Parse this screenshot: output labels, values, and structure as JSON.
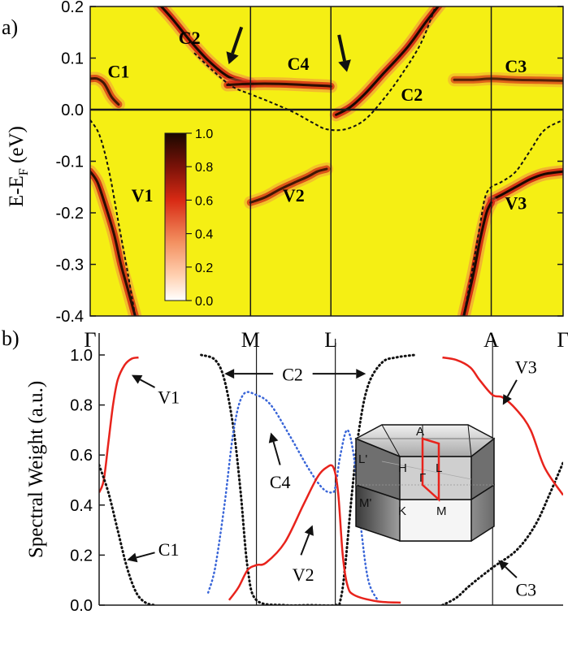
{
  "colors": {
    "panel_a_background": "#f5ef14",
    "axis": "#1a1a1a",
    "band_dark": "#1a0800",
    "band_mid": "#d02010",
    "band_light": "#f07050",
    "dashed": "#111111",
    "red_curve": "#e8231c",
    "blue_curve": "#3a66d8"
  },
  "chart_data": [
    {
      "type": "heatmap",
      "panel_label": "a)",
      "ylabel_main": "E-E",
      "ylabel_sub": "F",
      "ylabel_unit": " (eV)",
      "ylim": [
        -0.4,
        0.2
      ],
      "yticks": [
        {
          "value": 0.2,
          "label": "0.2"
        },
        {
          "value": 0.1,
          "label": "0.1"
        },
        {
          "value": 0.0,
          "label": "0.0"
        },
        {
          "value": -0.1,
          "label": "-0.1"
        },
        {
          "value": -0.2,
          "label": "-0.2"
        },
        {
          "value": -0.3,
          "label": "-0.3"
        },
        {
          "value": -0.4,
          "label": "-0.4"
        }
      ],
      "xlim": [
        0,
        1
      ],
      "kpoints": [
        {
          "label": "Γ",
          "x": 0.0
        },
        {
          "label": "M",
          "x": 0.339
        },
        {
          "label": "L",
          "x": 0.509
        },
        {
          "label": "A",
          "x": 0.848
        },
        {
          "label": "Γ",
          "x": 1.0
        }
      ],
      "colorbar": {
        "min": 0.0,
        "max": 1.0,
        "ticks": [
          {
            "value": 1.0,
            "label": "1.0"
          },
          {
            "value": 0.8,
            "label": "0.8"
          },
          {
            "value": 0.6,
            "label": "0.6"
          },
          {
            "value": 0.4,
            "label": "0.4"
          },
          {
            "value": 0.2,
            "label": "0.2"
          },
          {
            "value": 0.0,
            "label": "0.0"
          }
        ]
      },
      "band_labels": [
        {
          "text": "C1",
          "x": 0.06,
          "y": 0.075
        },
        {
          "text": "C2",
          "x": 0.21,
          "y": 0.14
        },
        {
          "text": "C4",
          "x": 0.44,
          "y": 0.09
        },
        {
          "text": "C2",
          "x": 0.68,
          "y": 0.03
        },
        {
          "text": "C3",
          "x": 0.9,
          "y": 0.085
        },
        {
          "text": "V1",
          "x": 0.11,
          "y": -0.165
        },
        {
          "text": "V2",
          "x": 0.43,
          "y": -0.165
        },
        {
          "text": "V3",
          "x": 0.9,
          "y": -0.18
        }
      ],
      "arrows": [
        {
          "x1": 0.32,
          "y1": 0.16,
          "x2": 0.293,
          "y2": 0.088
        },
        {
          "x1": 0.526,
          "y1": 0.145,
          "x2": 0.543,
          "y2": 0.073
        }
      ],
      "bands": [
        {
          "name": "C1",
          "intensity": 0.8,
          "x": [
            0.0,
            0.015,
            0.03,
            0.045,
            0.06
          ],
          "y": [
            0.06,
            0.06,
            0.05,
            0.025,
            0.01
          ]
        },
        {
          "name": "C2-left",
          "intensity": 1.0,
          "x": [
            0.13,
            0.17,
            0.21,
            0.25,
            0.29,
            0.32,
            0.339
          ],
          "y": [
            0.22,
            0.18,
            0.135,
            0.095,
            0.065,
            0.055,
            0.05
          ]
        },
        {
          "name": "C4",
          "intensity": 0.9,
          "x": [
            0.29,
            0.339,
            0.4,
            0.45,
            0.5,
            0.509
          ],
          "y": [
            0.048,
            0.05,
            0.05,
            0.048,
            0.046,
            0.045
          ]
        },
        {
          "name": "C2-right",
          "intensity": 1.0,
          "x": [
            0.52,
            0.55,
            0.58,
            0.62,
            0.67,
            0.71,
            0.74
          ],
          "y": [
            -0.01,
            0.005,
            0.03,
            0.07,
            0.12,
            0.17,
            0.205
          ]
        },
        {
          "name": "C3",
          "intensity": 0.7,
          "x": [
            0.77,
            0.81,
            0.848,
            0.9,
            0.95,
            1.0
          ],
          "y": [
            0.058,
            0.058,
            0.06,
            0.058,
            0.057,
            0.056
          ]
        },
        {
          "name": "V1",
          "intensity": 0.9,
          "x": [
            0.0,
            0.015,
            0.03,
            0.05,
            0.065,
            0.08,
            0.095
          ],
          "y": [
            -0.12,
            -0.14,
            -0.18,
            -0.24,
            -0.3,
            -0.35,
            -0.4
          ]
        },
        {
          "name": "V2",
          "intensity": 0.8,
          "x": [
            0.339,
            0.37,
            0.4,
            0.43,
            0.46,
            0.48,
            0.5
          ],
          "y": [
            -0.18,
            -0.17,
            -0.155,
            -0.142,
            -0.13,
            -0.12,
            -0.115
          ]
        },
        {
          "name": "V3-upper",
          "intensity": 1.0,
          "x": [
            0.848,
            0.87,
            0.9,
            0.93,
            0.96,
            1.0
          ],
          "y": [
            -0.175,
            -0.165,
            -0.15,
            -0.135,
            -0.125,
            -0.12
          ]
        },
        {
          "name": "V3-lower",
          "intensity": 1.0,
          "x": [
            0.79,
            0.81,
            0.825,
            0.838,
            0.848
          ],
          "y": [
            -0.4,
            -0.32,
            -0.25,
            -0.2,
            -0.18
          ]
        }
      ],
      "dashed_curves": [
        {
          "name": "left",
          "x": [
            0.0,
            0.02,
            0.04,
            0.06,
            0.08,
            0.095
          ],
          "y": [
            -0.02,
            -0.05,
            -0.12,
            -0.22,
            -0.32,
            -0.4
          ]
        },
        {
          "name": "middle",
          "x": [
            0.22,
            0.26,
            0.3,
            0.339,
            0.38,
            0.43,
            0.47,
            0.5,
            0.54,
            0.58,
            0.62,
            0.66,
            0.7,
            0.73
          ],
          "y": [
            0.11,
            0.075,
            0.045,
            0.03,
            0.015,
            -0.005,
            -0.025,
            -0.038,
            -0.038,
            -0.02,
            0.02,
            0.07,
            0.13,
            0.2
          ]
        },
        {
          "name": "right",
          "x": [
            0.79,
            0.81,
            0.825,
            0.835,
            0.848,
            0.87,
            0.9,
            0.93,
            0.96,
            1.0
          ],
          "y": [
            -0.4,
            -0.3,
            -0.22,
            -0.17,
            -0.15,
            -0.14,
            -0.12,
            -0.08,
            -0.04,
            -0.02
          ]
        }
      ]
    },
    {
      "type": "line",
      "panel_label": "b)",
      "ylabel": "Spectral Weight (a.u.)",
      "ylim": [
        0.0,
        1.0
      ],
      "yticks": [
        {
          "value": 1.0,
          "label": "1.0"
        },
        {
          "value": 0.8,
          "label": "0.8"
        },
        {
          "value": 0.6,
          "label": "0.6"
        },
        {
          "value": 0.4,
          "label": "0.4"
        },
        {
          "value": 0.2,
          "label": "0.2"
        },
        {
          "value": 0.0,
          "label": "0.0"
        }
      ],
      "xlim": [
        0,
        1
      ],
      "kpoint_lines": [
        0.339,
        0.509,
        0.848
      ],
      "series": [
        {
          "name": "V1",
          "style": "red-solid",
          "x": [
            0.0,
            0.01,
            0.02,
            0.03,
            0.04,
            0.055,
            0.07,
            0.085
          ],
          "y": [
            0.45,
            0.5,
            0.65,
            0.8,
            0.9,
            0.96,
            0.985,
            0.99
          ]
        },
        {
          "name": "C1",
          "style": "black-dotted",
          "x": [
            0.0,
            0.02,
            0.04,
            0.06,
            0.08,
            0.1,
            0.12
          ],
          "y": [
            0.56,
            0.45,
            0.3,
            0.15,
            0.05,
            0.01,
            0.0
          ]
        },
        {
          "name": "C2",
          "style": "black-dotted",
          "x": [
            0.22,
            0.25,
            0.27,
            0.29,
            0.305,
            0.32,
            0.339,
            0.4,
            0.45,
            0.509,
            0.52,
            0.53,
            0.545,
            0.56,
            0.58,
            0.61,
            0.64,
            0.68
          ],
          "y": [
            1.0,
            0.98,
            0.9,
            0.7,
            0.45,
            0.15,
            0.02,
            0.0,
            0.0,
            0.0,
            0.02,
            0.15,
            0.45,
            0.7,
            0.88,
            0.97,
            0.99,
            1.0
          ]
        },
        {
          "name": "C3",
          "style": "black-dotted",
          "x": [
            0.74,
            0.77,
            0.8,
            0.848,
            0.9,
            0.94,
            0.97,
            1.0
          ],
          "y": [
            0.0,
            0.03,
            0.08,
            0.15,
            0.22,
            0.32,
            0.44,
            0.57
          ]
        },
        {
          "name": "C4",
          "style": "blue-dotted",
          "x": [
            0.235,
            0.25,
            0.27,
            0.29,
            0.31,
            0.339,
            0.37,
            0.41,
            0.45,
            0.48,
            0.5,
            0.509,
            0.52,
            0.535,
            0.55,
            0.565,
            0.58,
            0.6
          ],
          "y": [
            0.05,
            0.15,
            0.4,
            0.7,
            0.84,
            0.84,
            0.8,
            0.68,
            0.55,
            0.47,
            0.45,
            0.47,
            0.6,
            0.7,
            0.58,
            0.3,
            0.1,
            0.02
          ]
        },
        {
          "name": "V2",
          "style": "red-solid",
          "x": [
            0.28,
            0.3,
            0.32,
            0.339,
            0.36,
            0.4,
            0.44,
            0.47,
            0.49,
            0.505,
            0.515,
            0.525,
            0.535,
            0.55,
            0.6,
            0.65
          ],
          "y": [
            0.02,
            0.07,
            0.14,
            0.16,
            0.17,
            0.25,
            0.4,
            0.51,
            0.55,
            0.55,
            0.45,
            0.2,
            0.08,
            0.04,
            0.015,
            0.01
          ]
        },
        {
          "name": "V3",
          "style": "red-solid",
          "x": [
            0.74,
            0.77,
            0.8,
            0.82,
            0.848,
            0.87,
            0.9,
            0.93,
            0.96,
            1.0
          ],
          "y": [
            0.99,
            0.98,
            0.95,
            0.9,
            0.84,
            0.83,
            0.78,
            0.7,
            0.55,
            0.44
          ]
        }
      ],
      "annotations": [
        {
          "text": "V1",
          "tx": 0.15,
          "ty": 0.83,
          "ax1": 0.12,
          "ay1": 0.87,
          "ax2": 0.07,
          "ay2": 0.92
        },
        {
          "text": "C1",
          "tx": 0.15,
          "ty": 0.22,
          "ax1": 0.12,
          "ay1": 0.21,
          "ax2": 0.06,
          "ay2": 0.18
        },
        {
          "text": "C4",
          "tx": 0.39,
          "ty": 0.49,
          "ax1": 0.39,
          "ay1": 0.56,
          "ax2": 0.37,
          "ay2": 0.69
        },
        {
          "text": "V2",
          "tx": 0.44,
          "ty": 0.12,
          "ax1": 0.435,
          "ay1": 0.2,
          "ax2": 0.46,
          "ay2": 0.32
        },
        {
          "text": "V3",
          "tx": 0.92,
          "ty": 0.95,
          "ax1": 0.9,
          "ay1": 0.9,
          "ax2": 0.87,
          "ay2": 0.8
        },
        {
          "text": "C3",
          "tx": 0.92,
          "ty": 0.06,
          "ax1": 0.9,
          "ay1": 0.11,
          "ax2": 0.86,
          "ay2": 0.18
        }
      ],
      "c2_label": {
        "text": "C2",
        "tx": 0.417,
        "ty": 0.92,
        "arrows": [
          {
            "x1": 0.375,
            "y1": 0.925,
            "x2": 0.27,
            "y2": 0.925
          },
          {
            "x1": 0.46,
            "y1": 0.925,
            "x2": 0.575,
            "y2": 0.925
          }
        ]
      },
      "bz_inset": {
        "labels": [
          "A",
          "L'",
          "H",
          "Γ",
          "L",
          "M'",
          "K",
          "M"
        ]
      }
    }
  ]
}
